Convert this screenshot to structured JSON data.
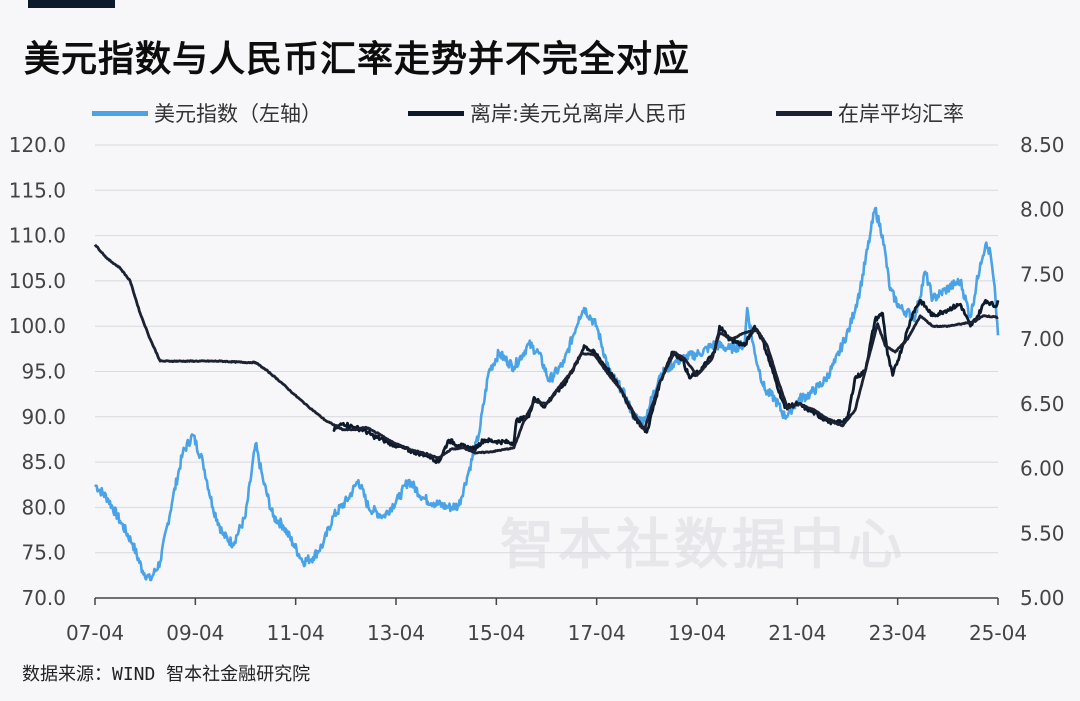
{
  "chart_data": {
    "type": "line",
    "title": "美元指数与人民币汇率走势并不完全对应",
    "x_labels": [
      "07-04",
      "09-04",
      "11-04",
      "13-04",
      "15-04",
      "17-04",
      "19-04",
      "21-04",
      "23-04",
      "25-04"
    ],
    "x_range": [
      2007.25,
      2025.25
    ],
    "y_left": {
      "label": "美元指数（左轴）",
      "range": [
        70,
        120
      ],
      "ticks": [
        "70.0",
        "75.0",
        "80.0",
        "85.0",
        "90.0",
        "95.0",
        "100.0",
        "105.0",
        "110.0",
        "115.0",
        "120.0"
      ]
    },
    "y_right": {
      "range": [
        5.0,
        8.5
      ],
      "ticks": [
        "5.00",
        "5.50",
        "6.00",
        "6.50",
        "7.00",
        "7.50",
        "8.00",
        "8.50"
      ]
    },
    "legend": [
      "美元指数（左轴）",
      "离岸:美元兑离岸人民币",
      "在岸平均汇率"
    ],
    "series": [
      {
        "name": "美元指数（左轴）",
        "axis": "left",
        "color": "#4aa3e6",
        "points": [
          [
            2007.25,
            82.5
          ],
          [
            2007.5,
            81
          ],
          [
            2007.75,
            78.5
          ],
          [
            2008.0,
            76
          ],
          [
            2008.2,
            73
          ],
          [
            2008.35,
            72
          ],
          [
            2008.55,
            74
          ],
          [
            2008.8,
            81
          ],
          [
            2009.0,
            86
          ],
          [
            2009.2,
            88
          ],
          [
            2009.4,
            85
          ],
          [
            2009.6,
            80
          ],
          [
            2009.8,
            77
          ],
          [
            2010.0,
            76
          ],
          [
            2010.25,
            79
          ],
          [
            2010.45,
            87
          ],
          [
            2010.6,
            83
          ],
          [
            2010.8,
            79
          ],
          [
            2011.0,
            78
          ],
          [
            2011.2,
            76
          ],
          [
            2011.4,
            74
          ],
          [
            2011.6,
            74.5
          ],
          [
            2011.8,
            76
          ],
          [
            2012.0,
            79
          ],
          [
            2012.3,
            81
          ],
          [
            2012.5,
            83
          ],
          [
            2012.7,
            80
          ],
          [
            2013.0,
            79
          ],
          [
            2013.3,
            81
          ],
          [
            2013.5,
            83
          ],
          [
            2013.8,
            81
          ],
          [
            2014.0,
            80.5
          ],
          [
            2014.3,
            80
          ],
          [
            2014.5,
            80.2
          ],
          [
            2014.7,
            84
          ],
          [
            2014.9,
            88
          ],
          [
            2015.1,
            95
          ],
          [
            2015.3,
            97
          ],
          [
            2015.6,
            95.5
          ],
          [
            2015.9,
            98
          ],
          [
            2016.1,
            97
          ],
          [
            2016.3,
            94
          ],
          [
            2016.6,
            96
          ],
          [
            2016.9,
            101
          ],
          [
            2017.0,
            102
          ],
          [
            2017.25,
            100
          ],
          [
            2017.5,
            95
          ],
          [
            2017.75,
            93
          ],
          [
            2018.0,
            90
          ],
          [
            2018.2,
            89.5
          ],
          [
            2018.5,
            94.5
          ],
          [
            2018.8,
            96
          ],
          [
            2019.0,
            96.5
          ],
          [
            2019.3,
            97
          ],
          [
            2019.6,
            98
          ],
          [
            2019.9,
            97.5
          ],
          [
            2020.2,
            98
          ],
          [
            2020.25,
            102
          ],
          [
            2020.4,
            97
          ],
          [
            2020.6,
            93
          ],
          [
            2020.8,
            92
          ],
          [
            2021.0,
            90
          ],
          [
            2021.3,
            92
          ],
          [
            2021.5,
            92.5
          ],
          [
            2021.8,
            94
          ],
          [
            2022.0,
            96
          ],
          [
            2022.3,
            100
          ],
          [
            2022.5,
            104
          ],
          [
            2022.7,
            110
          ],
          [
            2022.8,
            113
          ],
          [
            2022.95,
            110
          ],
          [
            2023.1,
            104
          ],
          [
            2023.3,
            102
          ],
          [
            2023.6,
            101
          ],
          [
            2023.8,
            106
          ],
          [
            2023.95,
            103
          ],
          [
            2024.2,
            104
          ],
          [
            2024.5,
            105
          ],
          [
            2024.7,
            101
          ],
          [
            2024.9,
            107
          ],
          [
            2025.0,
            109
          ],
          [
            2025.1,
            108
          ],
          [
            2025.2,
            103
          ],
          [
            2025.25,
            99
          ]
        ]
      },
      {
        "name": "离岸:美元兑离岸人民币",
        "axis": "right",
        "color": "#0d1a2b",
        "points": [
          [
            2012.0,
            6.3
          ],
          [
            2012.2,
            6.35
          ],
          [
            2012.4,
            6.32
          ],
          [
            2012.6,
            6.3
          ],
          [
            2012.8,
            6.25
          ],
          [
            2013.0,
            6.22
          ],
          [
            2013.3,
            6.17
          ],
          [
            2013.6,
            6.13
          ],
          [
            2013.9,
            6.1
          ],
          [
            2014.1,
            6.05
          ],
          [
            2014.3,
            6.22
          ],
          [
            2014.5,
            6.18
          ],
          [
            2014.8,
            6.15
          ],
          [
            2015.0,
            6.22
          ],
          [
            2015.25,
            6.21
          ],
          [
            2015.6,
            6.2
          ],
          [
            2015.65,
            6.37
          ],
          [
            2015.9,
            6.4
          ],
          [
            2016.0,
            6.55
          ],
          [
            2016.2,
            6.48
          ],
          [
            2016.4,
            6.57
          ],
          [
            2016.6,
            6.65
          ],
          [
            2016.9,
            6.85
          ],
          [
            2017.0,
            6.95
          ],
          [
            2017.25,
            6.88
          ],
          [
            2017.5,
            6.75
          ],
          [
            2017.75,
            6.6
          ],
          [
            2018.0,
            6.4
          ],
          [
            2018.25,
            6.28
          ],
          [
            2018.5,
            6.65
          ],
          [
            2018.75,
            6.9
          ],
          [
            2018.95,
            6.85
          ],
          [
            2019.1,
            6.7
          ],
          [
            2019.3,
            6.75
          ],
          [
            2019.6,
            6.9
          ],
          [
            2019.7,
            7.1
          ],
          [
            2019.9,
            7.0
          ],
          [
            2020.2,
            6.95
          ],
          [
            2020.4,
            7.1
          ],
          [
            2020.55,
            7.0
          ],
          [
            2020.8,
            6.7
          ],
          [
            2021.0,
            6.47
          ],
          [
            2021.25,
            6.5
          ],
          [
            2021.5,
            6.45
          ],
          [
            2021.8,
            6.38
          ],
          [
            2022.0,
            6.35
          ],
          [
            2022.25,
            6.38
          ],
          [
            2022.4,
            6.7
          ],
          [
            2022.6,
            6.75
          ],
          [
            2022.8,
            7.15
          ],
          [
            2022.95,
            7.2
          ],
          [
            2023.05,
            6.88
          ],
          [
            2023.15,
            6.72
          ],
          [
            2023.35,
            6.95
          ],
          [
            2023.55,
            7.2
          ],
          [
            2023.7,
            7.3
          ],
          [
            2023.95,
            7.18
          ],
          [
            2024.2,
            7.22
          ],
          [
            2024.5,
            7.27
          ],
          [
            2024.7,
            7.1
          ],
          [
            2024.85,
            7.18
          ],
          [
            2025.0,
            7.3
          ],
          [
            2025.1,
            7.28
          ],
          [
            2025.2,
            7.25
          ],
          [
            2025.25,
            7.3
          ]
        ]
      },
      {
        "name": "在岸平均汇率",
        "axis": "right",
        "color": "#1c2233",
        "points": [
          [
            2007.25,
            7.73
          ],
          [
            2007.5,
            7.62
          ],
          [
            2007.75,
            7.55
          ],
          [
            2007.95,
            7.45
          ],
          [
            2008.15,
            7.2
          ],
          [
            2008.35,
            7.0
          ],
          [
            2008.55,
            6.83
          ],
          [
            2008.75,
            6.83
          ],
          [
            2009.25,
            6.83
          ],
          [
            2009.75,
            6.83
          ],
          [
            2010.25,
            6.82
          ],
          [
            2010.45,
            6.82
          ],
          [
            2010.7,
            6.75
          ],
          [
            2010.95,
            6.67
          ],
          [
            2011.2,
            6.58
          ],
          [
            2011.5,
            6.48
          ],
          [
            2011.85,
            6.37
          ],
          [
            2012.2,
            6.3
          ],
          [
            2012.45,
            6.3
          ],
          [
            2012.65,
            6.32
          ],
          [
            2012.9,
            6.27
          ],
          [
            2013.2,
            6.2
          ],
          [
            2013.5,
            6.15
          ],
          [
            2013.8,
            6.12
          ],
          [
            2014.1,
            6.08
          ],
          [
            2014.35,
            6.15
          ],
          [
            2014.6,
            6.16
          ],
          [
            2014.85,
            6.12
          ],
          [
            2015.15,
            6.13
          ],
          [
            2015.6,
            6.16
          ],
          [
            2015.8,
            6.37
          ],
          [
            2016.0,
            6.52
          ],
          [
            2016.25,
            6.5
          ],
          [
            2016.5,
            6.63
          ],
          [
            2016.75,
            6.75
          ],
          [
            2016.95,
            6.89
          ],
          [
            2017.2,
            6.88
          ],
          [
            2017.5,
            6.72
          ],
          [
            2017.75,
            6.6
          ],
          [
            2018.0,
            6.42
          ],
          [
            2018.2,
            6.3
          ],
          [
            2018.5,
            6.66
          ],
          [
            2018.8,
            6.9
          ],
          [
            2019.0,
            6.85
          ],
          [
            2019.25,
            6.72
          ],
          [
            2019.55,
            6.85
          ],
          [
            2019.7,
            7.05
          ],
          [
            2019.95,
            7.0
          ],
          [
            2020.2,
            7.05
          ],
          [
            2020.45,
            7.07
          ],
          [
            2020.65,
            6.95
          ],
          [
            2020.85,
            6.7
          ],
          [
            2021.05,
            6.47
          ],
          [
            2021.3,
            6.5
          ],
          [
            2021.6,
            6.45
          ],
          [
            2021.9,
            6.37
          ],
          [
            2022.15,
            6.33
          ],
          [
            2022.4,
            6.45
          ],
          [
            2022.6,
            6.75
          ],
          [
            2022.85,
            7.12
          ],
          [
            2023.0,
            6.95
          ],
          [
            2023.2,
            6.9
          ],
          [
            2023.45,
            7.0
          ],
          [
            2023.7,
            7.18
          ],
          [
            2023.95,
            7.1
          ],
          [
            2024.25,
            7.1
          ],
          [
            2024.55,
            7.12
          ],
          [
            2024.75,
            7.13
          ],
          [
            2024.95,
            7.18
          ],
          [
            2025.25,
            7.17
          ]
        ]
      }
    ]
  },
  "source_text": "数据来源：WIND 智本社金融研究院",
  "watermark_text": "智本社数据中心"
}
